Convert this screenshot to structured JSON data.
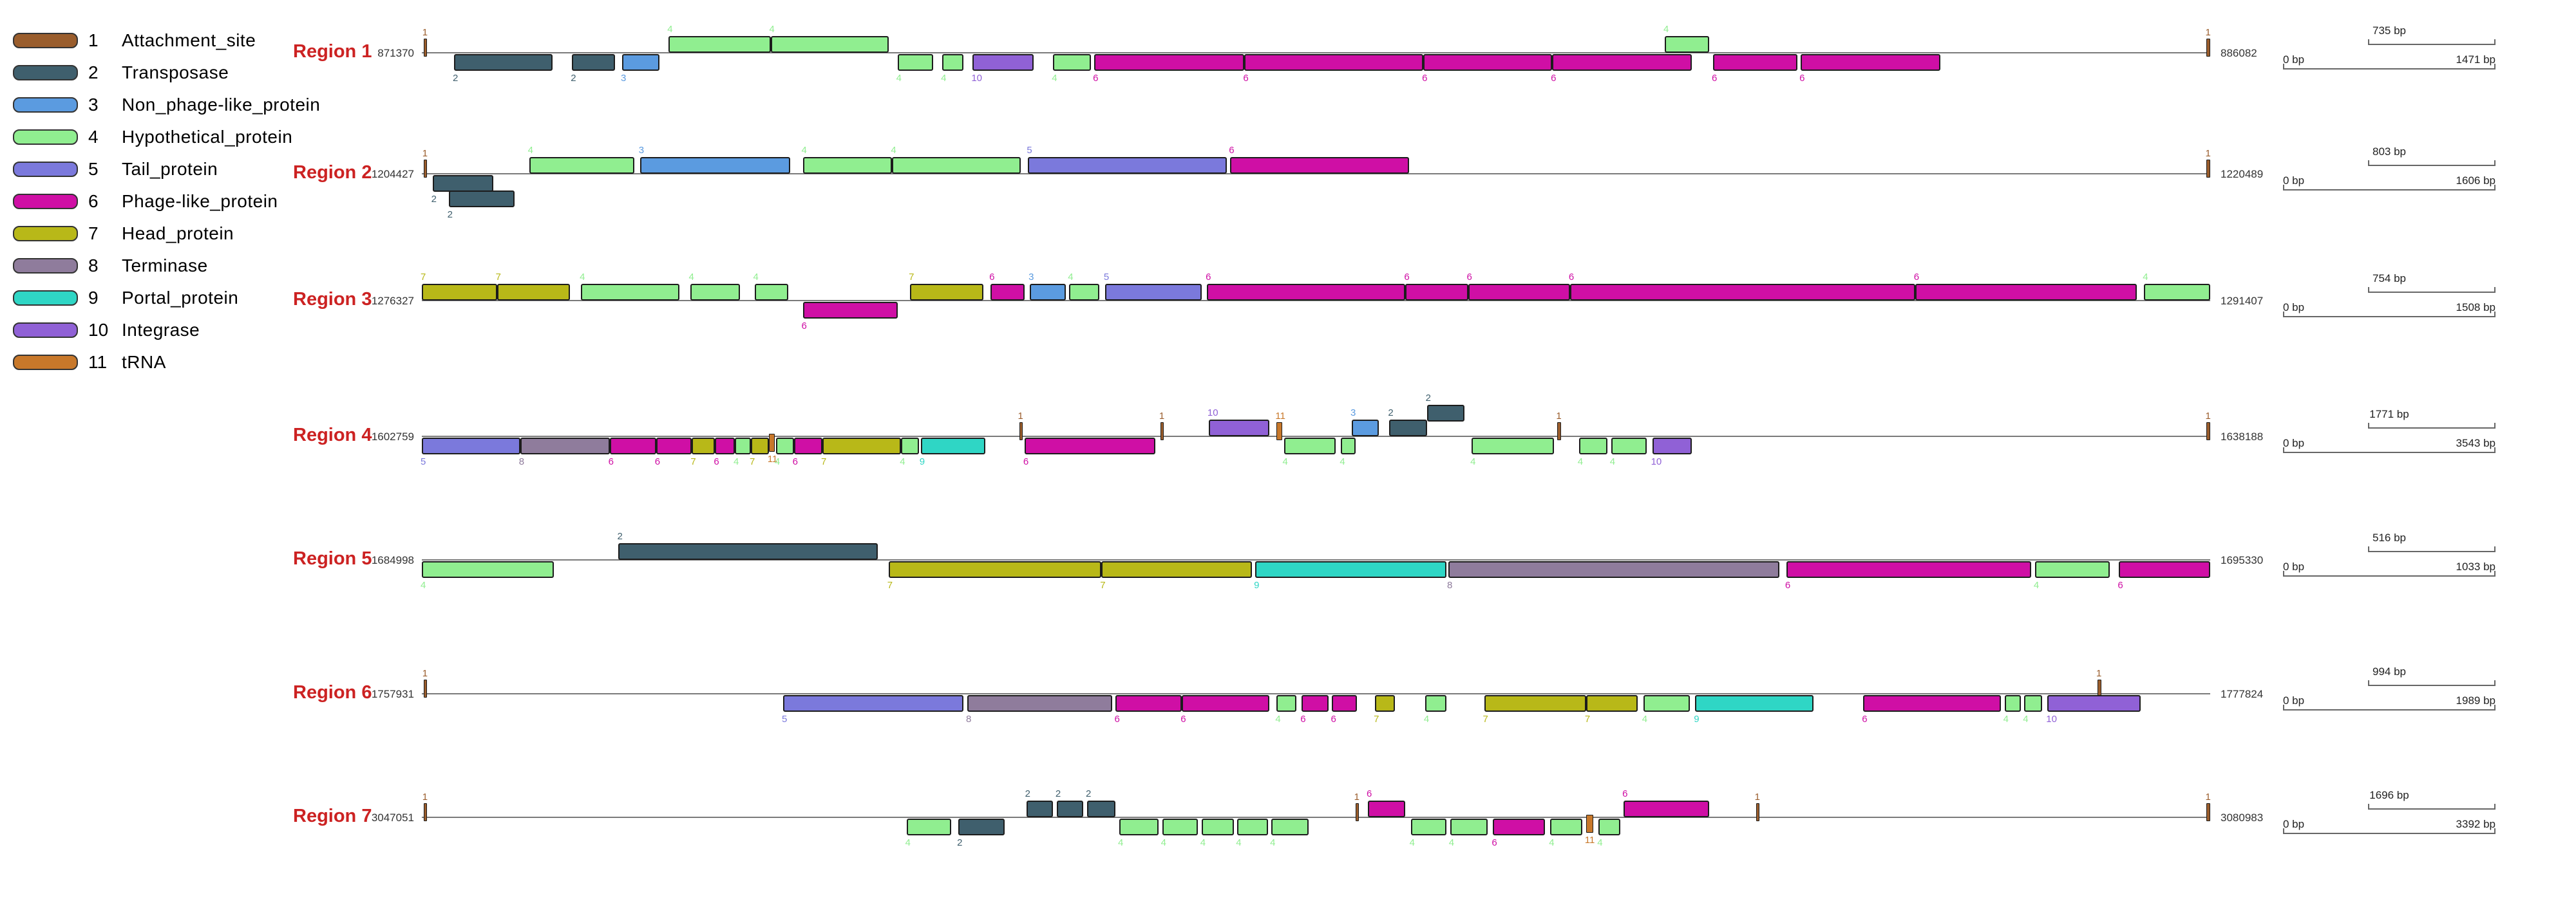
{
  "legend": {
    "items": [
      {
        "num": "1",
        "label": "Attachment_site",
        "color": "#9a5d2c"
      },
      {
        "num": "2",
        "label": "Transposase",
        "color": "#3f5f6d"
      },
      {
        "num": "3",
        "label": "Non_phage-like_protein",
        "color": "#5b9be0"
      },
      {
        "num": "4",
        "label": "Hypothetical_protein",
        "color": "#90ee90"
      },
      {
        "num": "5",
        "label": "Tail_protein",
        "color": "#7b79dc"
      },
      {
        "num": "6",
        "label": "Phage-like_protein",
        "color": "#cf0fa5"
      },
      {
        "num": "7",
        "label": "Head_protein",
        "color": "#b8b818"
      },
      {
        "num": "8",
        "label": "Terminase",
        "color": "#8f7c9c"
      },
      {
        "num": "9",
        "label": "Portal_protein",
        "color": "#2fd6c5"
      },
      {
        "num": "10",
        "label": "Integrase",
        "color": "#9061d6"
      },
      {
        "num": "11",
        "label": "tRNA",
        "color": "#c8782a"
      }
    ]
  },
  "regions": [
    {
      "name": "Region 1",
      "start": "871370",
      "end": "886082",
      "scale": {
        "mid": "735 bp",
        "zero": "0 bp",
        "full": "1471 bp"
      },
      "genes": [
        {
          "c": 1,
          "s": "t",
          "a": 0.1,
          "b": 0.3
        },
        {
          "c": 2,
          "s": "d",
          "a": 1.8,
          "b": 7.3
        },
        {
          "c": 2,
          "s": "d",
          "a": 8.4,
          "b": 10.8
        },
        {
          "c": 3,
          "s": "d",
          "a": 11.2,
          "b": 13.3
        },
        {
          "c": 4,
          "s": "u",
          "a": 13.8,
          "b": 19.5
        },
        {
          "c": 4,
          "s": "u",
          "a": 19.5,
          "b": 26.1
        },
        {
          "c": 4,
          "s": "d",
          "a": 26.6,
          "b": 28.6
        },
        {
          "c": 4,
          "s": "d",
          "a": 29.1,
          "b": 30.3
        },
        {
          "c": 10,
          "s": "d",
          "a": 30.8,
          "b": 34.2
        },
        {
          "c": 4,
          "s": "d",
          "a": 35.3,
          "b": 37.4
        },
        {
          "c": 6,
          "s": "d",
          "a": 37.6,
          "b": 46.0
        },
        {
          "c": 6,
          "s": "d",
          "a": 46.0,
          "b": 56.0
        },
        {
          "c": 6,
          "s": "d",
          "a": 56.0,
          "b": 63.2
        },
        {
          "c": 6,
          "s": "d",
          "a": 63.2,
          "b": 71.0
        },
        {
          "c": 4,
          "s": "u",
          "a": 69.5,
          "b": 72.0
        },
        {
          "c": 6,
          "s": "d",
          "a": 72.2,
          "b": 76.9
        },
        {
          "c": 6,
          "s": "d",
          "a": 77.1,
          "b": 84.9
        },
        {
          "c": 1,
          "s": "t",
          "a": 99.8,
          "b": 100.0
        }
      ]
    },
    {
      "name": "Region 2",
      "start": "1204427",
      "end": "1220489",
      "scale": {
        "mid": "803 bp",
        "zero": "0 bp",
        "full": "1606 bp"
      },
      "genes": [
        {
          "c": 1,
          "s": "t",
          "a": 0.1,
          "b": 0.3
        },
        {
          "c": 2,
          "s": "d",
          "a": 0.6,
          "b": 4.0
        },
        {
          "c": 2,
          "s": "d2",
          "a": 1.5,
          "b": 5.2
        },
        {
          "c": 4,
          "s": "u",
          "a": 6.0,
          "b": 11.9
        },
        {
          "c": 3,
          "s": "u",
          "a": 12.2,
          "b": 20.6
        },
        {
          "c": 4,
          "s": "u",
          "a": 21.3,
          "b": 26.3
        },
        {
          "c": 4,
          "s": "u",
          "a": 26.3,
          "b": 33.5
        },
        {
          "c": 5,
          "s": "u",
          "a": 33.9,
          "b": 45.0
        },
        {
          "c": 6,
          "s": "u",
          "a": 45.2,
          "b": 55.2
        },
        {
          "c": 1,
          "s": "t",
          "a": 99.8,
          "b": 100.0
        }
      ]
    },
    {
      "name": "Region 3",
      "start": "1276327",
      "end": "1291407",
      "scale": {
        "mid": "754 bp",
        "zero": "0 bp",
        "full": "1508 bp"
      },
      "genes": [
        {
          "c": 7,
          "s": "u",
          "a": 0.0,
          "b": 4.2
        },
        {
          "c": 7,
          "s": "u",
          "a": 4.2,
          "b": 8.3
        },
        {
          "c": 4,
          "s": "u",
          "a": 8.9,
          "b": 14.4
        },
        {
          "c": 4,
          "s": "u",
          "a": 15.0,
          "b": 17.8
        },
        {
          "c": 4,
          "s": "u",
          "a": 18.6,
          "b": 20.5
        },
        {
          "c": 6,
          "s": "d",
          "a": 21.3,
          "b": 26.6
        },
        {
          "c": 7,
          "s": "u",
          "a": 27.3,
          "b": 31.4
        },
        {
          "c": 6,
          "s": "u",
          "a": 31.8,
          "b": 33.7
        },
        {
          "c": 3,
          "s": "u",
          "a": 34.0,
          "b": 36.0
        },
        {
          "c": 4,
          "s": "u",
          "a": 36.2,
          "b": 37.9
        },
        {
          "c": 5,
          "s": "u",
          "a": 38.2,
          "b": 43.6
        },
        {
          "c": 6,
          "s": "u",
          "a": 43.9,
          "b": 55.0
        },
        {
          "c": 6,
          "s": "u",
          "a": 55.0,
          "b": 58.5
        },
        {
          "c": 6,
          "s": "u",
          "a": 58.5,
          "b": 64.2
        },
        {
          "c": 6,
          "s": "u",
          "a": 64.2,
          "b": 83.5
        },
        {
          "c": 6,
          "s": "u",
          "a": 83.5,
          "b": 95.9
        },
        {
          "c": 4,
          "s": "u",
          "a": 96.3,
          "b": 100.0
        }
      ]
    },
    {
      "name": "Region 4",
      "start": "1602759",
      "end": "1638188",
      "scale": {
        "mid": "1771 bp",
        "zero": "0 bp",
        "full": "3543 bp"
      },
      "genes": [
        {
          "c": 5,
          "s": "d",
          "a": 0.0,
          "b": 5.5
        },
        {
          "c": 8,
          "s": "d",
          "a": 5.5,
          "b": 10.5
        },
        {
          "c": 6,
          "s": "d",
          "a": 10.5,
          "b": 13.1
        },
        {
          "c": 6,
          "s": "d",
          "a": 13.1,
          "b": 15.1
        },
        {
          "c": 7,
          "s": "d",
          "a": 15.1,
          "b": 16.4
        },
        {
          "c": 6,
          "s": "d",
          "a": 16.4,
          "b": 17.5
        },
        {
          "c": 4,
          "s": "d",
          "a": 17.5,
          "b": 18.4
        },
        {
          "c": 7,
          "s": "d",
          "a": 18.4,
          "b": 19.4
        },
        {
          "c": 11,
          "s": "td",
          "a": 19.4,
          "b": 19.75
        },
        {
          "c": 4,
          "s": "d",
          "a": 19.8,
          "b": 20.8
        },
        {
          "c": 6,
          "s": "d",
          "a": 20.8,
          "b": 22.4
        },
        {
          "c": 7,
          "s": "d",
          "a": 22.4,
          "b": 26.8
        },
        {
          "c": 4,
          "s": "d",
          "a": 26.8,
          "b": 27.8
        },
        {
          "c": 9,
          "s": "d",
          "a": 27.9,
          "b": 31.5
        },
        {
          "c": 1,
          "s": "t",
          "a": 33.4,
          "b": 33.6
        },
        {
          "c": 6,
          "s": "d",
          "a": 33.7,
          "b": 41.0
        },
        {
          "c": 1,
          "s": "t",
          "a": 41.3,
          "b": 41.5
        },
        {
          "c": 10,
          "s": "u",
          "a": 44.0,
          "b": 47.4
        },
        {
          "c": 11,
          "s": "t",
          "a": 47.8,
          "b": 48.1
        },
        {
          "c": 4,
          "s": "d",
          "a": 48.2,
          "b": 51.1
        },
        {
          "c": 4,
          "s": "d",
          "a": 51.4,
          "b": 52.2
        },
        {
          "c": 3,
          "s": "u",
          "a": 52.0,
          "b": 53.5
        },
        {
          "c": 2,
          "s": "u",
          "a": 54.1,
          "b": 56.2
        },
        {
          "c": 2,
          "s": "u2",
          "a": 56.2,
          "b": 58.3
        },
        {
          "c": 4,
          "s": "d",
          "a": 58.7,
          "b": 63.3
        },
        {
          "c": 1,
          "s": "t",
          "a": 63.5,
          "b": 63.7
        },
        {
          "c": 4,
          "s": "d",
          "a": 64.7,
          "b": 66.3
        },
        {
          "c": 4,
          "s": "d",
          "a": 66.5,
          "b": 68.5
        },
        {
          "c": 10,
          "s": "d",
          "a": 68.8,
          "b": 71.0
        },
        {
          "c": 1,
          "s": "t",
          "a": 99.8,
          "b": 100.0
        }
      ]
    },
    {
      "name": "Region 5",
      "start": "1684998",
      "end": "1695330",
      "scale": {
        "mid": "516 bp",
        "zero": "0 bp",
        "full": "1033 bp"
      },
      "genes": [
        {
          "c": 4,
          "s": "d",
          "a": 0.0,
          "b": 7.4
        },
        {
          "c": 2,
          "s": "u",
          "a": 11.0,
          "b": 25.5
        },
        {
          "c": 7,
          "s": "d",
          "a": 26.1,
          "b": 38.0
        },
        {
          "c": 7,
          "s": "d",
          "a": 38.0,
          "b": 46.4
        },
        {
          "c": 9,
          "s": "d",
          "a": 46.6,
          "b": 57.3
        },
        {
          "c": 8,
          "s": "d",
          "a": 57.4,
          "b": 75.9
        },
        {
          "c": 6,
          "s": "d",
          "a": 76.3,
          "b": 90.0
        },
        {
          "c": 4,
          "s": "d",
          "a": 90.2,
          "b": 94.4
        },
        {
          "c": 6,
          "s": "d",
          "a": 94.9,
          "b": 100.0
        }
      ]
    },
    {
      "name": "Region 6",
      "start": "1757931",
      "end": "1777824",
      "scale": {
        "mid": "994 bp",
        "zero": "0 bp",
        "full": "1989 bp"
      },
      "genes": [
        {
          "c": 1,
          "s": "t",
          "a": 0.1,
          "b": 0.3
        },
        {
          "c": 5,
          "s": "d",
          "a": 20.2,
          "b": 30.3
        },
        {
          "c": 8,
          "s": "d",
          "a": 30.5,
          "b": 38.6
        },
        {
          "c": 6,
          "s": "d",
          "a": 38.8,
          "b": 42.5
        },
        {
          "c": 6,
          "s": "d",
          "a": 42.5,
          "b": 47.4
        },
        {
          "c": 4,
          "s": "d",
          "a": 47.8,
          "b": 48.9
        },
        {
          "c": 6,
          "s": "d",
          "a": 49.2,
          "b": 50.7
        },
        {
          "c": 6,
          "s": "d",
          "a": 50.9,
          "b": 52.3
        },
        {
          "c": 7,
          "s": "d",
          "a": 53.3,
          "b": 54.4
        },
        {
          "c": 4,
          "s": "d",
          "a": 56.1,
          "b": 57.3
        },
        {
          "c": 7,
          "s": "d",
          "a": 59.4,
          "b": 65.1
        },
        {
          "c": 7,
          "s": "d",
          "a": 65.1,
          "b": 68.0
        },
        {
          "c": 4,
          "s": "d",
          "a": 68.3,
          "b": 70.9
        },
        {
          "c": 9,
          "s": "d",
          "a": 71.2,
          "b": 77.8
        },
        {
          "c": 6,
          "s": "d",
          "a": 80.6,
          "b": 88.3
        },
        {
          "c": 4,
          "s": "d",
          "a": 88.5,
          "b": 89.4
        },
        {
          "c": 4,
          "s": "d",
          "a": 89.6,
          "b": 90.6
        },
        {
          "c": 1,
          "s": "t",
          "a": 93.7,
          "b": 93.9
        },
        {
          "c": 10,
          "s": "d",
          "a": 90.9,
          "b": 96.1
        }
      ]
    },
    {
      "name": "Region 7",
      "start": "3047051",
      "end": "3080983",
      "scale": {
        "mid": "1696 bp",
        "zero": "0 bp",
        "full": "3392 bp"
      },
      "genes": [
        {
          "c": 1,
          "s": "t",
          "a": 0.1,
          "b": 0.3
        },
        {
          "c": 4,
          "s": "d",
          "a": 27.1,
          "b": 29.6
        },
        {
          "c": 2,
          "s": "d",
          "a": 30.0,
          "b": 32.6
        },
        {
          "c": 2,
          "s": "u",
          "a": 33.8,
          "b": 35.3
        },
        {
          "c": 2,
          "s": "u",
          "a": 35.5,
          "b": 37.0
        },
        {
          "c": 2,
          "s": "u",
          "a": 37.2,
          "b": 38.8
        },
        {
          "c": 4,
          "s": "d",
          "a": 39.0,
          "b": 41.2
        },
        {
          "c": 4,
          "s": "d",
          "a": 41.4,
          "b": 43.4
        },
        {
          "c": 4,
          "s": "d",
          "a": 43.6,
          "b": 45.4
        },
        {
          "c": 4,
          "s": "d",
          "a": 45.6,
          "b": 47.3
        },
        {
          "c": 4,
          "s": "d",
          "a": 47.5,
          "b": 49.6
        },
        {
          "c": 1,
          "s": "t",
          "a": 52.2,
          "b": 52.4
        },
        {
          "c": 6,
          "s": "u",
          "a": 52.9,
          "b": 55.0
        },
        {
          "c": 4,
          "s": "d",
          "a": 55.3,
          "b": 57.3
        },
        {
          "c": 4,
          "s": "d",
          "a": 57.5,
          "b": 59.6
        },
        {
          "c": 6,
          "s": "d",
          "a": 59.9,
          "b": 62.8
        },
        {
          "c": 4,
          "s": "d",
          "a": 63.1,
          "b": 64.9
        },
        {
          "c": 11,
          "s": "td",
          "a": 65.1,
          "b": 65.5
        },
        {
          "c": 4,
          "s": "d",
          "a": 65.8,
          "b": 67.0
        },
        {
          "c": 6,
          "s": "u",
          "a": 67.2,
          "b": 72.0
        },
        {
          "c": 1,
          "s": "t",
          "a": 74.6,
          "b": 74.8
        },
        {
          "c": 1,
          "s": "t",
          "a": 99.8,
          "b": 100.0
        }
      ]
    }
  ]
}
